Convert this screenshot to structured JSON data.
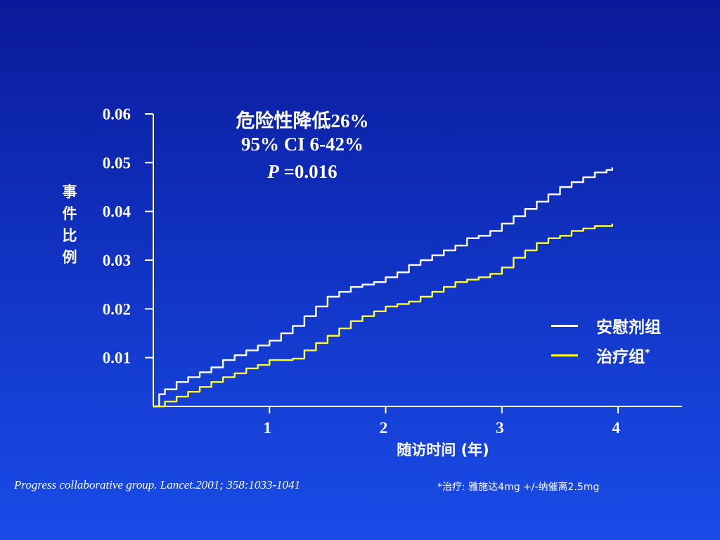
{
  "stats": {
    "line1": "危险性降低26%",
    "line2": "95% CI 6-42%",
    "p_label": "P",
    "p_value": "=0.016"
  },
  "ylabel_chars": [
    "事",
    "件",
    "比",
    "例"
  ],
  "xlabel": "随访时间 (年)",
  "legend": {
    "placebo": "安慰剂组",
    "treatment": "治疗组",
    "treatment_mark": "*"
  },
  "citation": "Progress collaborative group. Lancet.2001; 358:1033-1041",
  "footnote": "*治疗: 雅施达4mg +/-纳催离2.5mg",
  "colors": {
    "placebo": "#ffffff",
    "treatment": "#ffff33",
    "axis": "#ffffff"
  },
  "chart_data": {
    "type": "line",
    "xlim": [
      0,
      4.55
    ],
    "ylim": [
      0,
      0.06
    ],
    "x_ticks": [
      1,
      2,
      3,
      4
    ],
    "x_tick_labels": [
      "1",
      "2",
      "3",
      "4"
    ],
    "y_ticks": [
      0.01,
      0.02,
      0.03,
      0.04,
      0.05,
      0.06
    ],
    "y_tick_labels": [
      "0.01",
      "0.02",
      "0.03",
      "0.04",
      "0.05",
      "0.06"
    ],
    "grid": false,
    "legend_position": "right",
    "series": [
      {
        "name": "安慰剂组",
        "color": "#ffffff",
        "x": [
          0,
          0.05,
          0.1,
          0.2,
          0.3,
          0.4,
          0.5,
          0.6,
          0.7,
          0.8,
          0.9,
          1.0,
          1.1,
          1.2,
          1.3,
          1.4,
          1.5,
          1.6,
          1.7,
          1.8,
          1.9,
          2.0,
          2.1,
          2.2,
          2.3,
          2.4,
          2.5,
          2.6,
          2.7,
          2.8,
          2.9,
          3.0,
          3.1,
          3.2,
          3.3,
          3.4,
          3.5,
          3.6,
          3.7,
          3.8,
          3.9,
          3.95
        ],
        "y": [
          0,
          0.0025,
          0.0035,
          0.005,
          0.006,
          0.007,
          0.008,
          0.0095,
          0.0105,
          0.0115,
          0.0125,
          0.0135,
          0.015,
          0.0165,
          0.0185,
          0.0205,
          0.0225,
          0.0235,
          0.0245,
          0.025,
          0.0255,
          0.0265,
          0.0275,
          0.029,
          0.03,
          0.031,
          0.032,
          0.033,
          0.0345,
          0.035,
          0.036,
          0.0375,
          0.039,
          0.0405,
          0.042,
          0.0435,
          0.045,
          0.046,
          0.047,
          0.048,
          0.0485,
          0.049
        ]
      },
      {
        "name": "治疗组*",
        "color": "#ffff33",
        "x": [
          0,
          0.1,
          0.2,
          0.3,
          0.4,
          0.5,
          0.6,
          0.7,
          0.8,
          0.9,
          1.0,
          1.1,
          1.2,
          1.3,
          1.4,
          1.5,
          1.6,
          1.7,
          1.8,
          1.9,
          2.0,
          2.1,
          2.2,
          2.3,
          2.4,
          2.5,
          2.6,
          2.7,
          2.8,
          2.9,
          3.0,
          3.1,
          3.2,
          3.3,
          3.4,
          3.5,
          3.6,
          3.7,
          3.8,
          3.9,
          3.95
        ],
        "y": [
          0,
          0.001,
          0.002,
          0.003,
          0.004,
          0.005,
          0.006,
          0.0068,
          0.0078,
          0.0085,
          0.0095,
          0.0095,
          0.0098,
          0.0115,
          0.013,
          0.0145,
          0.016,
          0.0175,
          0.0185,
          0.0195,
          0.0205,
          0.021,
          0.0215,
          0.0225,
          0.0235,
          0.0245,
          0.0255,
          0.026,
          0.0265,
          0.0272,
          0.0285,
          0.0305,
          0.032,
          0.0335,
          0.0345,
          0.035,
          0.036,
          0.0365,
          0.037,
          0.037,
          0.0375
        ]
      }
    ]
  }
}
